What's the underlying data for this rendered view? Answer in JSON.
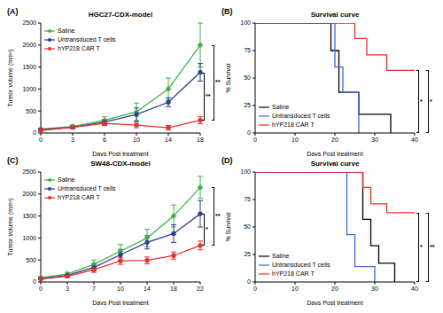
{
  "chart_data": [
    {
      "panel": "(A)",
      "type": "line",
      "title": "HGC27-CDX-model",
      "x_label": "Days Post treatment",
      "y_label": "Tumor volume (mm³)",
      "categories": [
        "0",
        "3",
        "6",
        "10",
        "14",
        "18"
      ],
      "ylim": [
        0,
        2500
      ],
      "yticks": [
        0,
        500,
        1000,
        1500,
        2000,
        2500
      ],
      "series": [
        {
          "name": "Saline",
          "color": "#3cb043",
          "marker": "diamond",
          "values": [
            90,
            150,
            290,
            480,
            1000,
            2000
          ],
          "errors": [
            20,
            30,
            80,
            200,
            250,
            500
          ]
        },
        {
          "name": "Untransduced T cells",
          "color": "#2b3f8f",
          "marker": "circle",
          "values": [
            80,
            130,
            250,
            420,
            700,
            1380
          ],
          "errors": [
            20,
            30,
            60,
            150,
            100,
            200
          ]
        },
        {
          "name": "hYP218 CAR T",
          "color": "#e8302a",
          "marker": "circle",
          "values": [
            60,
            130,
            220,
            180,
            120,
            290
          ],
          "errors": [
            20,
            30,
            50,
            60,
            50,
            80
          ]
        }
      ],
      "annotations": [
        "**",
        "**"
      ]
    },
    {
      "panel": "(B)",
      "type": "step",
      "title": "Survival curve",
      "x_label": "Days Post treatment",
      "y_label": "% Survival",
      "xlim": [
        0,
        40
      ],
      "xticks": [
        0,
        10,
        20,
        30,
        40
      ],
      "ylim": [
        0,
        100
      ],
      "yticks": [
        0,
        25,
        50,
        75,
        100
      ],
      "series": [
        {
          "name": "Saline",
          "color": "#000000",
          "x": [
            0,
            19,
            21,
            26,
            34
          ],
          "values": [
            100,
            75,
            37,
            17,
            0
          ]
        },
        {
          "name": "Untransduced T cells",
          "color": "#4169e1",
          "x": [
            0,
            20,
            22,
            26
          ],
          "values": [
            100,
            60,
            37,
            0
          ]
        },
        {
          "name": "hYP218 CAR T",
          "color": "#e8302a",
          "x": [
            0,
            25,
            28,
            33,
            40
          ],
          "values": [
            100,
            86,
            71,
            57,
            57
          ]
        }
      ],
      "annotations": [
        "*",
        "*"
      ]
    },
    {
      "panel": "(C)",
      "type": "line",
      "title": "SW48-CDX-model",
      "x_label": "Days Post treatment",
      "y_label": "Tumor volume (mm³)",
      "categories": [
        "0",
        "3",
        "7",
        "10",
        "14",
        "18",
        "22"
      ],
      "ylim": [
        0,
        2500
      ],
      "yticks": [
        0,
        500,
        1000,
        1500,
        2000,
        2500
      ],
      "series": [
        {
          "name": "Saline",
          "color": "#3cb043",
          "marker": "diamond",
          "values": [
            100,
            180,
            400,
            700,
            1000,
            1500,
            2150
          ],
          "errors": [
            20,
            40,
            100,
            150,
            200,
            250,
            250
          ]
        },
        {
          "name": "Untransduced T cells",
          "color": "#2b3f8f",
          "marker": "circle",
          "values": [
            80,
            150,
            330,
            620,
            900,
            1100,
            1550
          ],
          "errors": [
            20,
            30,
            80,
            120,
            150,
            200,
            300
          ]
        },
        {
          "name": "hYP218 CAR T",
          "color": "#e8302a",
          "marker": "circle",
          "values": [
            70,
            130,
            280,
            480,
            490,
            600,
            830
          ],
          "errors": [
            20,
            30,
            60,
            80,
            80,
            80,
            100
          ]
        }
      ],
      "annotations": [
        "*",
        "**"
      ]
    },
    {
      "panel": "(D)",
      "type": "step",
      "title": "Survival curve",
      "x_label": "Days Post treatment",
      "y_label": "% Survival",
      "xlim": [
        0,
        40
      ],
      "xticks": [
        0,
        10,
        20,
        30,
        40
      ],
      "ylim": [
        0,
        100
      ],
      "yticks": [
        0,
        25,
        50,
        75,
        100
      ],
      "series": [
        {
          "name": "Saline",
          "color": "#000000",
          "x": [
            0,
            27,
            29,
            31,
            35
          ],
          "values": [
            100,
            57,
            33,
            17,
            0
          ]
        },
        {
          "name": "Untransduced T cells",
          "color": "#4169e1",
          "x": [
            0,
            23,
            25,
            30
          ],
          "values": [
            100,
            43,
            14,
            0
          ]
        },
        {
          "name": "hYP218 CAR T",
          "color": "#e8302a",
          "x": [
            0,
            27,
            29,
            33,
            40
          ],
          "values": [
            100,
            86,
            71,
            63,
            63
          ]
        }
      ],
      "annotations": [
        "*",
        "**"
      ]
    }
  ]
}
